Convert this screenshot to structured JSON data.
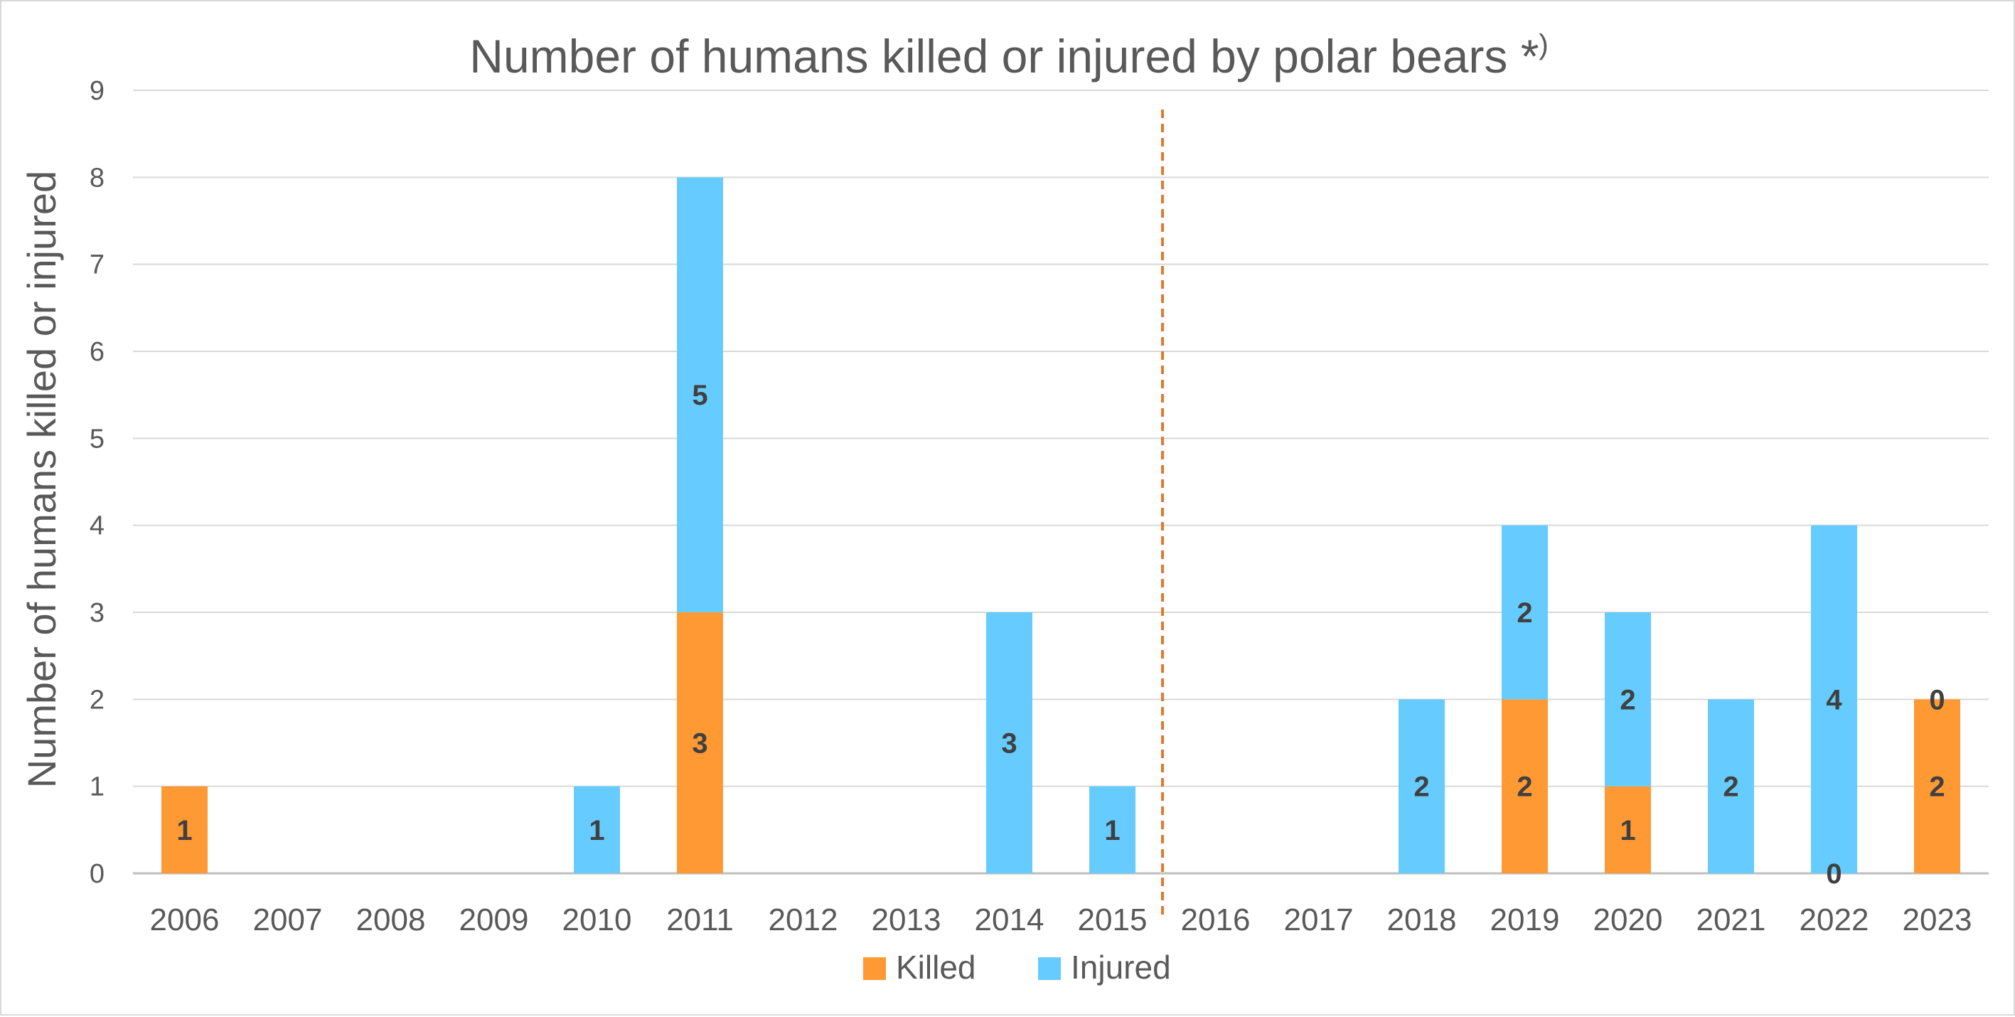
{
  "chart_data": {
    "type": "bar",
    "stacked": true,
    "title": "Number of humans killed or injured by polar bears *",
    "title_superscript": ")",
    "xlabel": "",
    "ylabel": "Number of humans killed or injured",
    "ylim": [
      0,
      9
    ],
    "yticks": [
      0,
      1,
      2,
      3,
      4,
      5,
      6,
      7,
      8,
      9
    ],
    "grid": true,
    "legend_position": "bottom",
    "categories": [
      "2006",
      "2007",
      "2008",
      "2009",
      "2010",
      "2011",
      "2012",
      "2013",
      "2014",
      "2015",
      "2016",
      "2017",
      "2018",
      "2019",
      "2020",
      "2021",
      "2022",
      "2023"
    ],
    "series": [
      {
        "name": "Killed",
        "color": "#ff9933",
        "values": [
          1,
          0,
          0,
          0,
          0,
          3,
          0,
          0,
          0,
          0,
          0,
          0,
          0,
          2,
          1,
          0,
          0,
          2
        ],
        "data_labels": [
          "1",
          "",
          "",
          "",
          "",
          "3",
          "",
          "",
          "",
          "",
          "",
          "",
          "",
          "2",
          "1",
          "",
          "0",
          "2"
        ]
      },
      {
        "name": "Injured",
        "color": "#66ccff",
        "values": [
          0,
          0,
          0,
          0,
          1,
          5,
          0,
          0,
          3,
          1,
          0,
          0,
          2,
          2,
          2,
          2,
          4,
          0
        ],
        "data_labels": [
          "",
          "",
          "",
          "",
          "1",
          "5",
          "",
          "",
          "3",
          "1",
          "",
          "",
          "2",
          "2",
          "2",
          "2",
          "4",
          "0"
        ]
      }
    ],
    "annotations": [
      {
        "type": "vertical-dashed-line",
        "between": [
          "2015",
          "2016"
        ],
        "color": "#e0782f"
      }
    ]
  }
}
